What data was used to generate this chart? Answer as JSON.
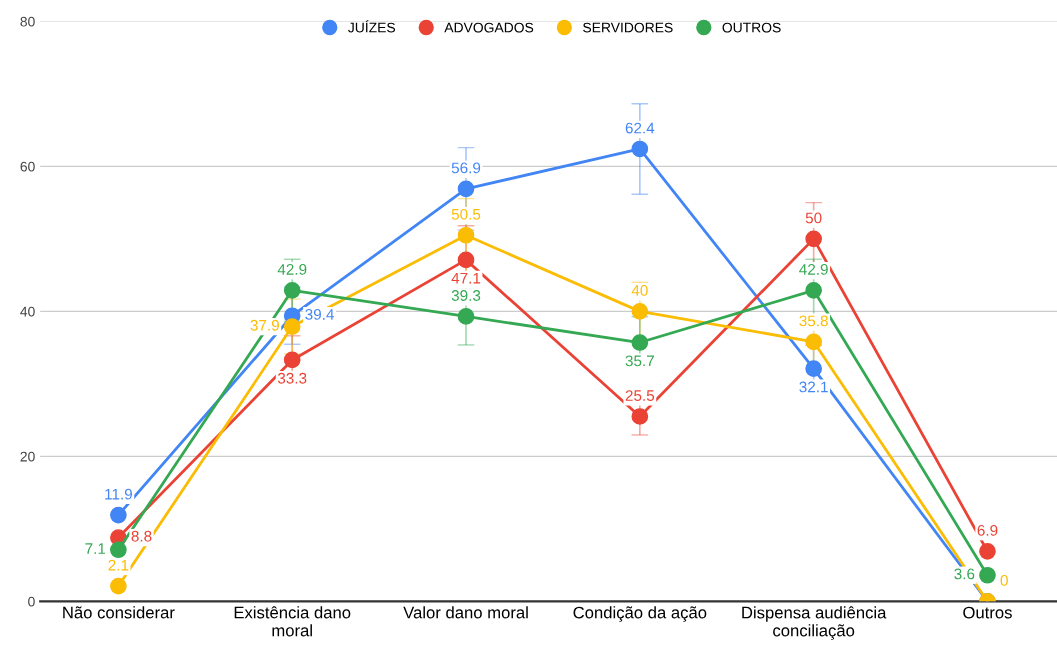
{
  "chart_data": {
    "type": "line",
    "categories": [
      "Não considerar",
      "Existência dano\nmoral",
      "Valor dano moral",
      "Condição da ação",
      "Dispensa audiência\nconciliação",
      "Outros"
    ],
    "series": [
      {
        "name": "JUÍZES",
        "color": "#4285f4",
        "values": [
          11.9,
          39.4,
          56.9,
          62.4,
          32.1,
          0
        ],
        "errors": [
          null,
          3.94,
          5.69,
          6.24,
          3.21,
          null
        ],
        "value_labels": [
          "11.9",
          "39.4",
          "56.9",
          "62.4",
          "32.1",
          null
        ]
      },
      {
        "name": "ADVOGADOS",
        "color": "#ea4335",
        "values": [
          8.8,
          33.3,
          47.1,
          25.5,
          50,
          6.9
        ],
        "errors": [
          null,
          3.33,
          4.71,
          2.55,
          5,
          null
        ],
        "value_labels": [
          "8.8",
          "33.3",
          "47.1",
          "25.5",
          "50",
          "6.9"
        ]
      },
      {
        "name": "SERVIDORES",
        "color": "#fbbc04",
        "values": [
          2.1,
          37.9,
          50.5,
          40,
          35.8,
          0
        ],
        "errors": [
          null,
          3.79,
          5.05,
          4,
          3.58,
          null
        ],
        "value_labels": [
          "2.1",
          "37.9",
          "50.5",
          "40",
          "35.8",
          "0"
        ]
      },
      {
        "name": "OUTROS",
        "color": "#34a853",
        "values": [
          7.1,
          42.9,
          39.3,
          35.7,
          42.9,
          3.6
        ],
        "errors": [
          null,
          4.29,
          3.93,
          3.57,
          4.29,
          null
        ],
        "value_labels": [
          "7.1",
          "42.9",
          "39.3",
          "35.7",
          "42.9",
          "3.6"
        ]
      }
    ],
    "ylim": [
      0,
      80
    ],
    "yticks": [
      0,
      20,
      40,
      60,
      80
    ],
    "grid": "y",
    "legend": "top",
    "marker": "circle",
    "line_style": "solid"
  }
}
